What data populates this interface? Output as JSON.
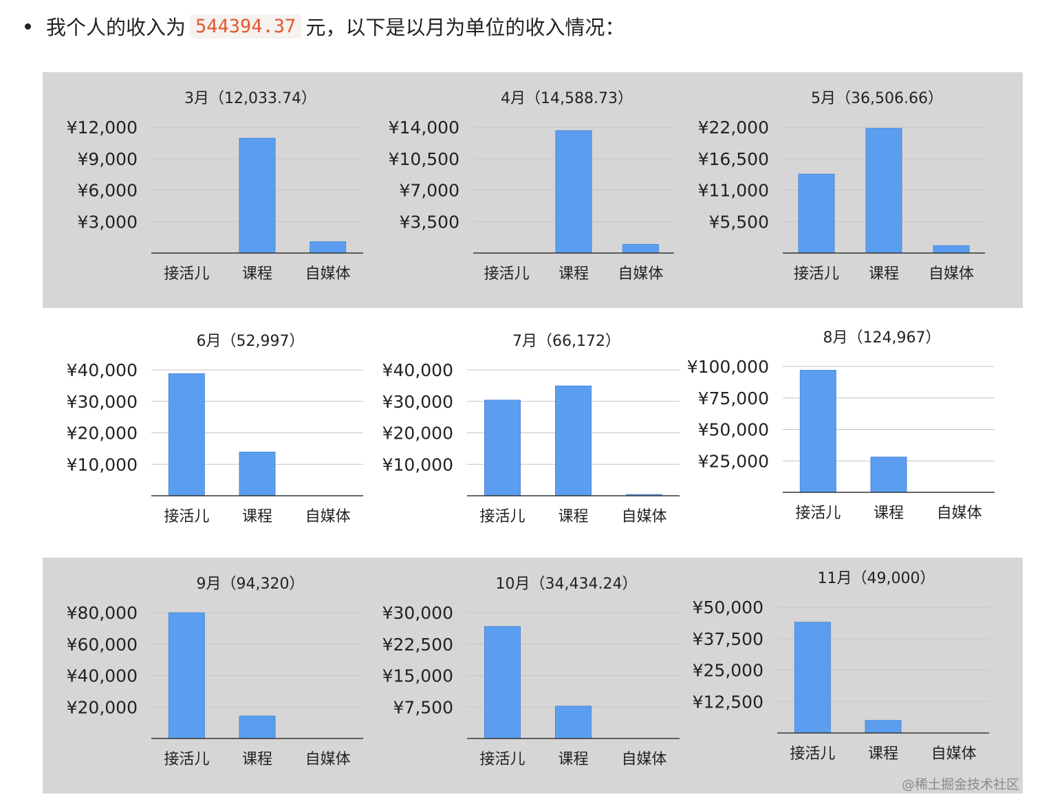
{
  "intro": {
    "prefix": "我个人的收入为",
    "amount": "544394.37",
    "suffix": "元，以下是以月为单位的收入情况："
  },
  "colors": {
    "bar": "#5b9ef0",
    "band": "#d6d6d6",
    "amount": "#e4572e"
  },
  "watermark": "@稀土掘金技术社区",
  "chart_data": [
    {
      "type": "bar",
      "title": "3月（12,033.74）",
      "categories": [
        "接活儿",
        "课程",
        "自媒体"
      ],
      "values": [
        0,
        10950,
        1080
      ],
      "ylim": [
        0,
        12000
      ],
      "yticks": [
        "¥12,000",
        "¥9,000",
        "¥6,000",
        "¥3,000"
      ],
      "yticks_values": [
        12000,
        9000,
        6000,
        3000
      ],
      "xlabel": "",
      "ylabel": "",
      "grid": true
    },
    {
      "type": "bar",
      "title": "4月（14,588.73）",
      "categories": [
        "接活儿",
        "课程",
        "自媒体"
      ],
      "values": [
        0,
        13620,
        970
      ],
      "ylim": [
        0,
        14000
      ],
      "yticks": [
        "¥14,000",
        "¥10,500",
        "¥7,000",
        "¥3,500"
      ],
      "yticks_values": [
        14000,
        10500,
        7000,
        3500
      ],
      "xlabel": "",
      "ylabel": "",
      "grid": true
    },
    {
      "type": "bar",
      "title": "5月（36,506.66）",
      "categories": [
        "接活儿",
        "课程",
        "自媒体"
      ],
      "values": [
        13800,
        21800,
        1300
      ],
      "ylim": [
        0,
        22000
      ],
      "yticks": [
        "¥22,000",
        "¥16,500",
        "¥11,000",
        "¥5,500"
      ],
      "yticks_values": [
        22000,
        16500,
        11000,
        5500
      ],
      "xlabel": "",
      "ylabel": "",
      "grid": true
    },
    {
      "type": "bar",
      "title": "6月（52,997）",
      "categories": [
        "接活儿",
        "课程",
        "自媒体"
      ],
      "values": [
        38800,
        13900,
        0
      ],
      "ylim": [
        0,
        40000
      ],
      "yticks": [
        "¥40,000",
        "¥30,000",
        "¥20,000",
        "¥10,000"
      ],
      "yticks_values": [
        40000,
        30000,
        20000,
        10000
      ],
      "xlabel": "",
      "ylabel": "",
      "grid": true
    },
    {
      "type": "bar",
      "title": "7月（66,172）",
      "categories": [
        "接活儿",
        "课程",
        "自媒体"
      ],
      "values": [
        30400,
        34900,
        400
      ],
      "ylim": [
        0,
        40000
      ],
      "yticks": [
        "¥40,000",
        "¥30,000",
        "¥20,000",
        "¥10,000"
      ],
      "yticks_values": [
        40000,
        30000,
        20000,
        10000
      ],
      "xlabel": "",
      "ylabel": "",
      "grid": true
    },
    {
      "type": "bar",
      "title": "8月（124,967）",
      "categories": [
        "接活儿",
        "课程",
        "自媒体"
      ],
      "values": [
        97000,
        28000,
        0
      ],
      "ylim": [
        0,
        100000
      ],
      "yticks": [
        "¥100,000",
        "¥75,000",
        "¥50,000",
        "¥25,000"
      ],
      "yticks_values": [
        100000,
        75000,
        50000,
        25000
      ],
      "xlabel": "",
      "ylabel": "",
      "grid": true
    },
    {
      "type": "bar",
      "title": "9月（94,320）",
      "categories": [
        "接活儿",
        "课程",
        "自媒体"
      ],
      "values": [
        79900,
        14300,
        0
      ],
      "ylim": [
        0,
        80000
      ],
      "yticks": [
        "¥80,000",
        "¥60,000",
        "¥40,000",
        "¥20,000"
      ],
      "yticks_values": [
        80000,
        60000,
        40000,
        20000
      ],
      "xlabel": "",
      "ylabel": "",
      "grid": true
    },
    {
      "type": "bar",
      "title": "10月（34,434.24）",
      "categories": [
        "接活儿",
        "课程",
        "自媒体"
      ],
      "values": [
        26700,
        7700,
        0
      ],
      "ylim": [
        0,
        30000
      ],
      "yticks": [
        "¥30,000",
        "¥22,500",
        "¥15,000",
        "¥7,500"
      ],
      "yticks_values": [
        30000,
        22500,
        15000,
        7500
      ],
      "xlabel": "",
      "ylabel": "",
      "grid": true
    },
    {
      "type": "bar",
      "title": "11月（49,000）",
      "categories": [
        "接活儿",
        "课程",
        "自媒体"
      ],
      "values": [
        44000,
        5000,
        0
      ],
      "ylim": [
        0,
        50000
      ],
      "yticks": [
        "¥50,000",
        "¥37,500",
        "¥25,000",
        "¥12,500"
      ],
      "yticks_values": [
        50000,
        37500,
        25000,
        12500
      ],
      "xlabel": "",
      "ylabel": "",
      "grid": true
    }
  ]
}
